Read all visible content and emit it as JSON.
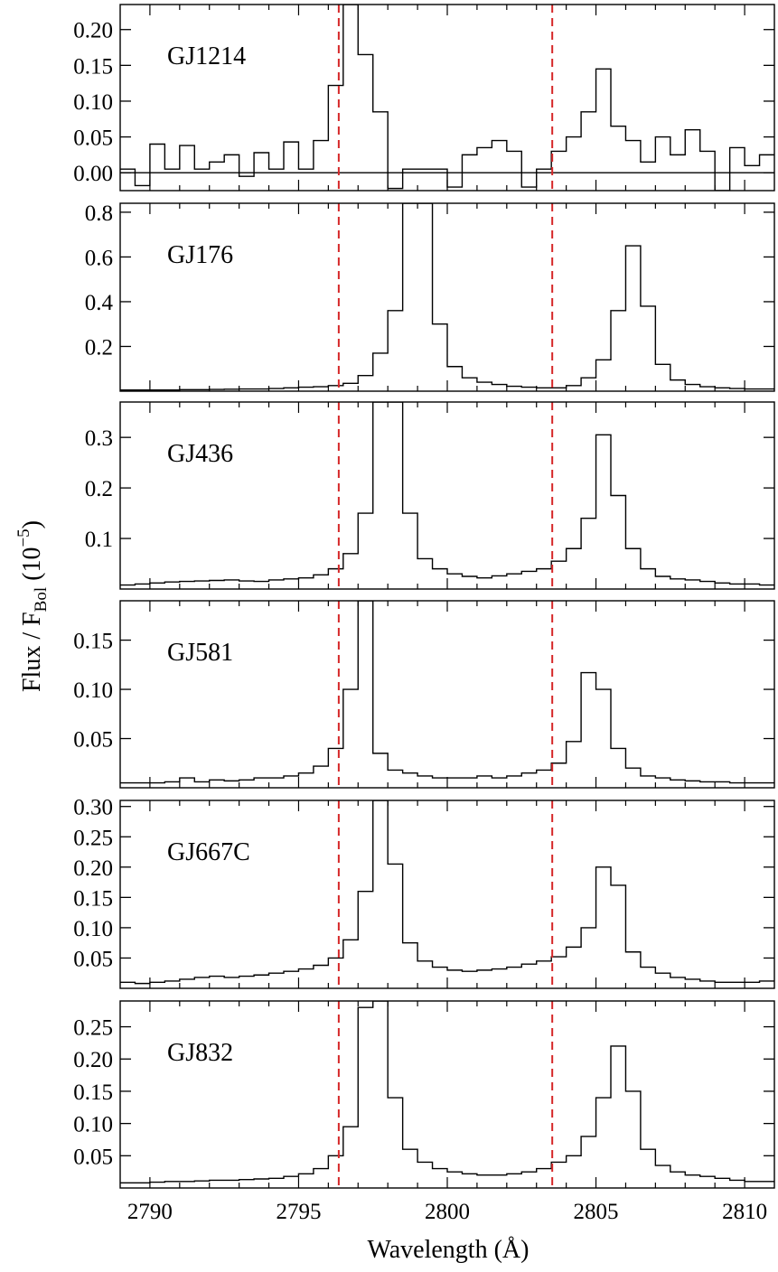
{
  "colors": {
    "spectrum": "#000000",
    "reference_line": "#d62728",
    "frame": "#000000"
  },
  "chart_data": {
    "type": "line",
    "step": true,
    "shared_x": true,
    "xlabel": "Wavelength (Å)",
    "ylabel": {
      "main": "Flux / F",
      "sub": "Bol",
      "paren": " (10",
      "exp": "−5",
      "close": ")"
    },
    "xlim": [
      2789,
      2811
    ],
    "xticks": [
      2790,
      2795,
      2800,
      2805,
      2810
    ],
    "xtick_labels": [
      "2790",
      "2795",
      "2800",
      "2805",
      "2810"
    ],
    "reference_lines": [
      2796.35,
      2803.53
    ],
    "bin_width": 0.5,
    "x": [
      2789.0,
      2789.5,
      2790.0,
      2790.5,
      2791.0,
      2791.5,
      2792.0,
      2792.5,
      2793.0,
      2793.5,
      2794.0,
      2794.5,
      2795.0,
      2795.5,
      2796.0,
      2796.5,
      2797.0,
      2797.5,
      2798.0,
      2798.5,
      2799.0,
      2799.5,
      2800.0,
      2800.5,
      2801.0,
      2801.5,
      2802.0,
      2802.5,
      2803.0,
      2803.5,
      2804.0,
      2804.5,
      2805.0,
      2805.5,
      2806.0,
      2806.5,
      2807.0,
      2807.5,
      2808.0,
      2808.5,
      2809.0,
      2809.5,
      2810.0,
      2810.5
    ],
    "panels": [
      {
        "name": "GJ1214",
        "ylim": [
          -0.025,
          0.235
        ],
        "yticks": [
          0.0,
          0.05,
          0.1,
          0.15,
          0.2
        ],
        "ytick_labels": [
          "0.00",
          "0.05",
          "0.10",
          "0.15",
          "0.20"
        ],
        "zero_line": true,
        "values": [
          0.005,
          -0.018,
          0.04,
          0.005,
          0.038,
          0.005,
          0.015,
          0.025,
          -0.005,
          0.028,
          0.005,
          0.043,
          0.005,
          0.045,
          0.122,
          0.235,
          0.165,
          0.085,
          -0.022,
          0.005,
          0.005,
          0.005,
          -0.02,
          0.025,
          0.035,
          0.045,
          0.03,
          -0.02,
          0.005,
          0.03,
          0.05,
          0.085,
          0.145,
          0.065,
          0.045,
          0.015,
          0.05,
          0.025,
          0.06,
          0.03,
          -0.025,
          0.035,
          0.01,
          0.025
        ]
      },
      {
        "name": "GJ176",
        "ylim": [
          0.0,
          0.84
        ],
        "yticks": [
          0.2,
          0.4,
          0.6,
          0.8
        ],
        "ytick_labels": [
          "0.2",
          "0.4",
          "0.6",
          "0.8"
        ],
        "zero_line": false,
        "values": [
          0.005,
          0.005,
          0.005,
          0.005,
          0.007,
          0.007,
          0.008,
          0.009,
          0.01,
          0.01,
          0.012,
          0.015,
          0.018,
          0.02,
          0.025,
          0.035,
          0.07,
          0.17,
          0.36,
          0.84,
          0.84,
          0.3,
          0.11,
          0.06,
          0.04,
          0.03,
          0.022,
          0.018,
          0.015,
          0.015,
          0.025,
          0.06,
          0.14,
          0.36,
          0.65,
          0.38,
          0.12,
          0.05,
          0.03,
          0.02,
          0.015,
          0.012,
          0.01,
          0.01
        ]
      },
      {
        "name": "GJ436",
        "ylim": [
          0.0,
          0.37
        ],
        "yticks": [
          0.1,
          0.2,
          0.3
        ],
        "ytick_labels": [
          "0.1",
          "0.2",
          "0.3"
        ],
        "zero_line": false,
        "values": [
          0.008,
          0.01,
          0.012,
          0.014,
          0.015,
          0.016,
          0.017,
          0.018,
          0.016,
          0.015,
          0.018,
          0.02,
          0.022,
          0.028,
          0.04,
          0.07,
          0.15,
          0.37,
          0.37,
          0.15,
          0.06,
          0.04,
          0.03,
          0.025,
          0.022,
          0.026,
          0.03,
          0.035,
          0.04,
          0.055,
          0.08,
          0.14,
          0.305,
          0.185,
          0.08,
          0.04,
          0.025,
          0.02,
          0.018,
          0.015,
          0.012,
          0.01,
          0.01,
          0.008
        ]
      },
      {
        "name": "GJ581",
        "ylim": [
          0.0,
          0.19
        ],
        "yticks": [
          0.05,
          0.1,
          0.15
        ],
        "ytick_labels": [
          "0.05",
          "0.10",
          "0.15"
        ],
        "zero_line": false,
        "values": [
          0.005,
          0.005,
          0.005,
          0.006,
          0.01,
          0.006,
          0.008,
          0.007,
          0.008,
          0.01,
          0.01,
          0.012,
          0.015,
          0.022,
          0.04,
          0.1,
          0.19,
          0.035,
          0.018,
          0.015,
          0.012,
          0.01,
          0.01,
          0.01,
          0.012,
          0.01,
          0.012,
          0.015,
          0.018,
          0.025,
          0.047,
          0.117,
          0.1,
          0.04,
          0.02,
          0.012,
          0.01,
          0.008,
          0.007,
          0.006,
          0.006,
          0.005,
          0.005,
          0.005
        ]
      },
      {
        "name": "GJ667C",
        "ylim": [
          0.0,
          0.31
        ],
        "yticks": [
          0.05,
          0.1,
          0.15,
          0.2,
          0.25,
          0.3
        ],
        "ytick_labels": [
          "0.05",
          "0.10",
          "0.15",
          "0.20",
          "0.25",
          "0.30"
        ],
        "zero_line": false,
        "values": [
          0.01,
          0.008,
          0.01,
          0.012,
          0.015,
          0.018,
          0.02,
          0.018,
          0.02,
          0.022,
          0.025,
          0.028,
          0.032,
          0.038,
          0.05,
          0.08,
          0.16,
          0.31,
          0.205,
          0.075,
          0.045,
          0.035,
          0.03,
          0.028,
          0.03,
          0.032,
          0.035,
          0.04,
          0.045,
          0.052,
          0.068,
          0.1,
          0.2,
          0.17,
          0.06,
          0.035,
          0.025,
          0.018,
          0.015,
          0.012,
          0.01,
          0.01,
          0.01,
          0.012
        ]
      },
      {
        "name": "GJ832",
        "ylim": [
          0.0,
          0.29
        ],
        "yticks": [
          0.05,
          0.1,
          0.15,
          0.2,
          0.25
        ],
        "ytick_labels": [
          "0.05",
          "0.10",
          "0.15",
          "0.20",
          "0.25"
        ],
        "zero_line": false,
        "values": [
          0.008,
          0.008,
          0.009,
          0.01,
          0.01,
          0.011,
          0.012,
          0.012,
          0.013,
          0.014,
          0.015,
          0.018,
          0.022,
          0.03,
          0.05,
          0.095,
          0.28,
          0.29,
          0.14,
          0.06,
          0.04,
          0.03,
          0.025,
          0.022,
          0.02,
          0.02,
          0.022,
          0.025,
          0.03,
          0.04,
          0.05,
          0.08,
          0.14,
          0.22,
          0.15,
          0.06,
          0.035,
          0.025,
          0.02,
          0.018,
          0.015,
          0.012,
          0.01,
          0.01
        ]
      }
    ]
  }
}
